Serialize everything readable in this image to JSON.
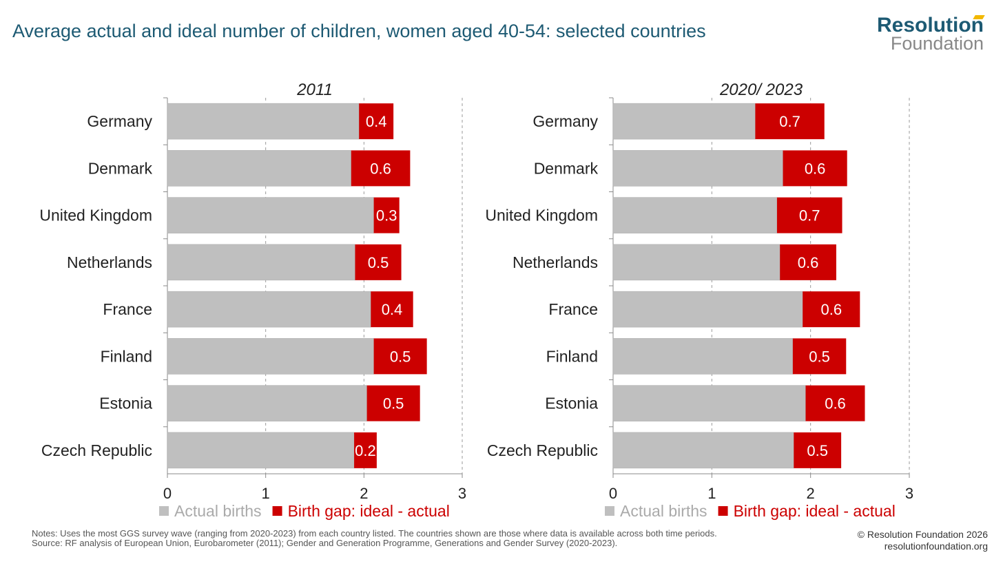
{
  "title": "Average actual and ideal number of children, women aged 40-54: selected countries",
  "logo": {
    "line1": "Resolution",
    "line2": "Foundation"
  },
  "chart_data": [
    {
      "type": "bar",
      "stacked": true,
      "orientation": "horizontal",
      "title": "2011",
      "categories": [
        "Germany",
        "Denmark",
        "United Kingdom",
        "Netherlands",
        "France",
        "Finland",
        "Estonia",
        "Czech Republic"
      ],
      "series": [
        {
          "name": "Actual births",
          "color": "#bfbfbf",
          "values": [
            1.95,
            1.87,
            2.1,
            1.91,
            2.07,
            2.1,
            2.03,
            1.9
          ]
        },
        {
          "name": "Birth gap: ideal - actual",
          "color": "#cc0000",
          "values": [
            0.35,
            0.6,
            0.26,
            0.47,
            0.43,
            0.54,
            0.54,
            0.23
          ],
          "labels": [
            "0.4",
            "0.6",
            "0.3",
            "0.5",
            "0.4",
            "0.5",
            "0.5",
            "0.2"
          ]
        }
      ],
      "xlim": [
        0,
        3
      ],
      "xticks": [
        "0",
        "1",
        "2",
        "3"
      ],
      "grid": "vertical dashed",
      "legend": "bottom"
    },
    {
      "type": "bar",
      "stacked": true,
      "orientation": "horizontal",
      "title": "2020/ 2023",
      "categories": [
        "Germany",
        "Denmark",
        "United Kingdom",
        "Netherlands",
        "France",
        "Finland",
        "Estonia",
        "Czech Republic"
      ],
      "series": [
        {
          "name": "Actual births",
          "color": "#bfbfbf",
          "values": [
            1.44,
            1.72,
            1.66,
            1.69,
            1.92,
            1.82,
            1.95,
            1.83
          ]
        },
        {
          "name": "Birth gap: ideal - actual",
          "color": "#cc0000",
          "values": [
            0.7,
            0.65,
            0.66,
            0.57,
            0.58,
            0.54,
            0.6,
            0.48
          ],
          "labels": [
            "0.7",
            "0.6",
            "0.7",
            "0.6",
            "0.6",
            "0.5",
            "0.6",
            "0.5"
          ]
        }
      ],
      "xlim": [
        0,
        3
      ],
      "xticks": [
        "0",
        "1",
        "2",
        "3"
      ],
      "grid": "vertical dashed",
      "legend": "bottom"
    }
  ],
  "notes": "Notes: Uses the most GGS survey wave (ranging from 2020-2023) from each country listed. The countries shown are those where data is available across both time periods.",
  "source": "Source: RF analysis of European Union, Eurobarometer (2011); Gender and Generation Programme, Generations and Gender Survey (2020-2023).",
  "copyright": "© Resolution Foundation 2026",
  "website": "resolutionfoundation.org"
}
